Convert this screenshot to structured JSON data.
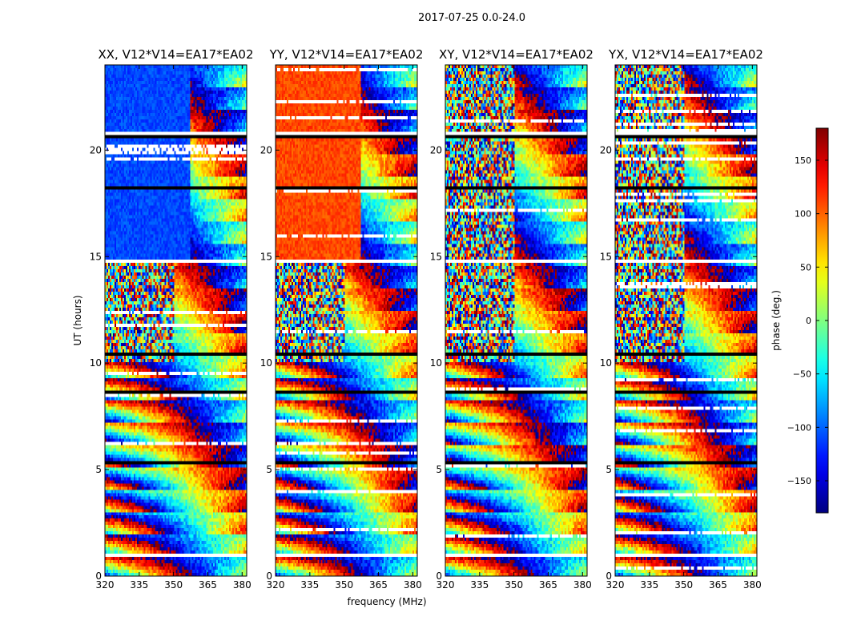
{
  "figure": {
    "suptitle": "2017-07-25 0.0-24.0",
    "xlabel": "frequency (MHz)",
    "ylabel": "UT (hours)"
  },
  "chart_data": {
    "type": "heatmap",
    "colormap": "jet",
    "x_range": [
      320,
      382
    ],
    "y_range": [
      0,
      24
    ],
    "xticks": [
      320,
      335,
      350,
      365,
      380
    ],
    "yticks": [
      0,
      5,
      10,
      15,
      20
    ],
    "colorbar": {
      "label": "phase (deg.)",
      "range": [
        -180,
        180
      ],
      "ticks": [
        150,
        100,
        50,
        0,
        -50,
        -100,
        -150
      ],
      "tick_labels": [
        "150",
        "100",
        "50",
        "0",
        "−50",
        "−100",
        "−150"
      ]
    },
    "panels": [
      {
        "title": "XX, V12*V14=EA17*EA02",
        "coherent_phase_deg": -110
      },
      {
        "title": "YY, V12*V14=EA17*EA02",
        "coherent_phase_deg": 110
      },
      {
        "title": "XY, V12*V14=EA17*EA02",
        "coherent_phase_deg": null
      },
      {
        "title": "YX, V12*V14=EA17*EA02",
        "coherent_phase_deg": null
      }
    ],
    "flagged_time_bands_hours": [
      [
        0.95,
        1.05
      ],
      [
        2.5,
        2.6
      ],
      [
        5.25,
        5.35
      ],
      [
        8.55,
        8.65
      ],
      [
        10.35,
        10.55
      ],
      [
        12.7,
        12.8
      ],
      [
        14.7,
        14.8
      ],
      [
        18.1,
        18.3
      ],
      [
        20.6,
        20.8
      ]
    ],
    "coherent_time_ranges_hours": [
      [
        14.8,
        18.1
      ],
      [
        18.3,
        20.6
      ],
      [
        20.8,
        24.0
      ]
    ],
    "coherent_freq_limit_mhz": 357
  }
}
